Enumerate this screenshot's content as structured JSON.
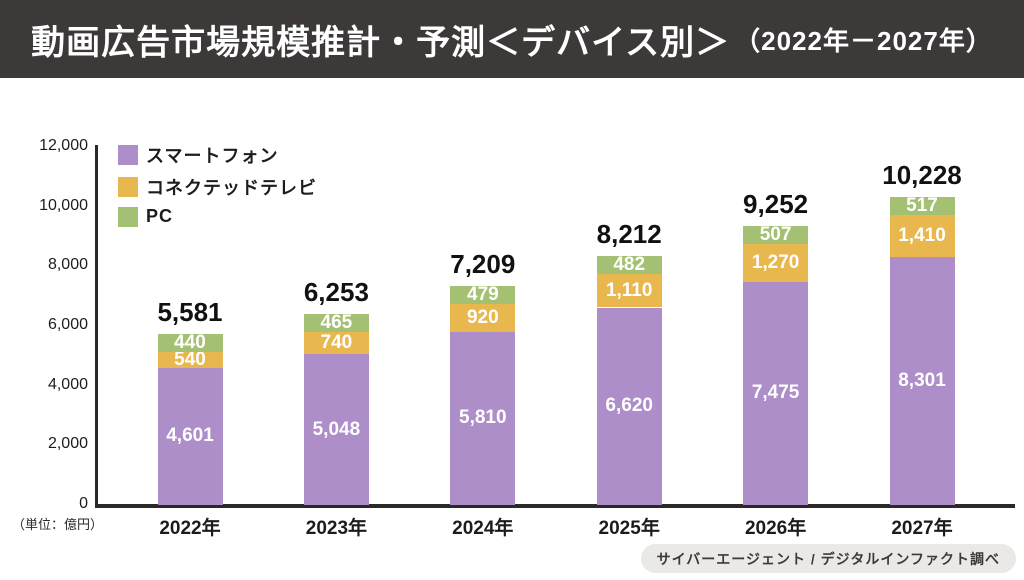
{
  "header": {
    "title": "動画広告市場規模推計・予測＜デバイス別＞",
    "subtitle": "（2022年－2027年）"
  },
  "unit_label": "（単位：億円）",
  "source_label": "サイバーエージェント / デジタルインファクト調べ",
  "colors": {
    "header_bg": "#3D3939",
    "axis": "#2B2828",
    "smartphone": "#AE8EC9",
    "connected_tv": "#E8B84E",
    "pc": "#A4C173"
  },
  "chart_data": {
    "type": "bar",
    "stacked": true,
    "title": "動画広告市場規模推計・予測＜デバイス別＞（2022年－2027年）",
    "categories": [
      "2022年",
      "2023年",
      "2024年",
      "2025年",
      "2026年",
      "2027年"
    ],
    "series": [
      {
        "name": "スマートフォン",
        "color_key": "smartphone",
        "values": [
          4601,
          5048,
          5810,
          6620,
          7475,
          8301
        ]
      },
      {
        "name": "コネクテッドテレビ",
        "color_key": "connected_tv",
        "values": [
          540,
          740,
          920,
          1110,
          1270,
          1410
        ]
      },
      {
        "name": "PC",
        "color_key": "pc",
        "values": [
          440,
          465,
          479,
          482,
          507,
          517
        ]
      }
    ],
    "totals": [
      5581,
      6253,
      7209,
      8212,
      9252,
      10228
    ],
    "ylabel": "（単位：億円）",
    "ylim": [
      0,
      12000
    ],
    "yticks": [
      0,
      2000,
      4000,
      6000,
      8000,
      10000,
      12000
    ],
    "grid": false,
    "legend_position": "top-left"
  }
}
